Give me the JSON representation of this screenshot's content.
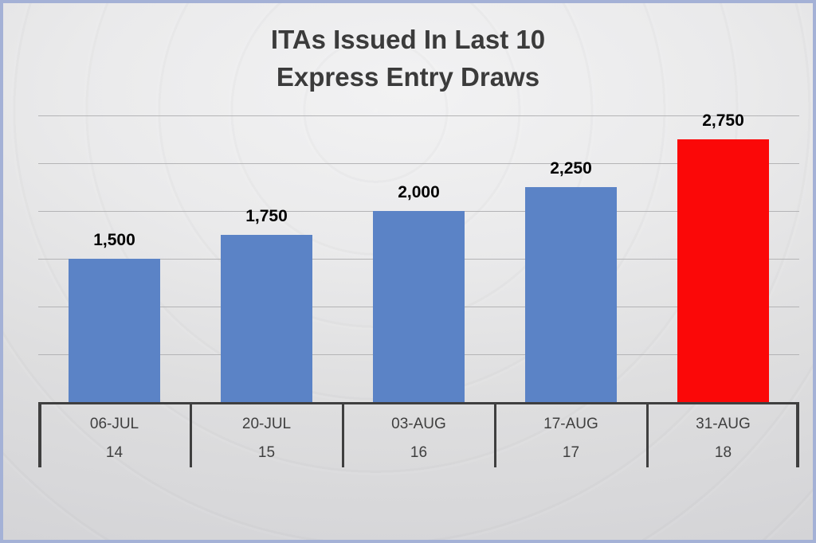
{
  "chart_data": {
    "type": "bar",
    "title": "ITAs Issued In Last 10 Express Entry Draws",
    "title_lines": [
      "ITAs Issued In Last 10",
      "Express Entry Draws"
    ],
    "categories": [
      {
        "date": "06-JUL",
        "draw": "14"
      },
      {
        "date": "20-JUL",
        "draw": "15"
      },
      {
        "date": "03-AUG",
        "draw": "16"
      },
      {
        "date": "17-AUG",
        "draw": "17"
      },
      {
        "date": "31-AUG",
        "draw": "18"
      }
    ],
    "values": [
      1500,
      1750,
      2000,
      2250,
      2750
    ],
    "data_labels": [
      "1,500",
      "1,750",
      "2,000",
      "2,250",
      "2,750"
    ],
    "bar_colors": [
      "#5b83c6",
      "#5b83c6",
      "#5b83c6",
      "#5b83c6",
      "#fb0808"
    ],
    "highlight_index": 4,
    "xlabel": "",
    "ylabel": "",
    "ylim": [
      0,
      3000
    ],
    "gridline_step": 500,
    "grid": true,
    "legend": "none"
  },
  "style": {
    "bar_blue": "#5b83c6",
    "bar_red": "#fb0808",
    "title_color": "#3b3b3b",
    "data_label_color": "#000000",
    "axis_color": "#3f3f3f",
    "gridline_color": "#b4b4b6",
    "frame_border_color": "#a4b1d6"
  }
}
